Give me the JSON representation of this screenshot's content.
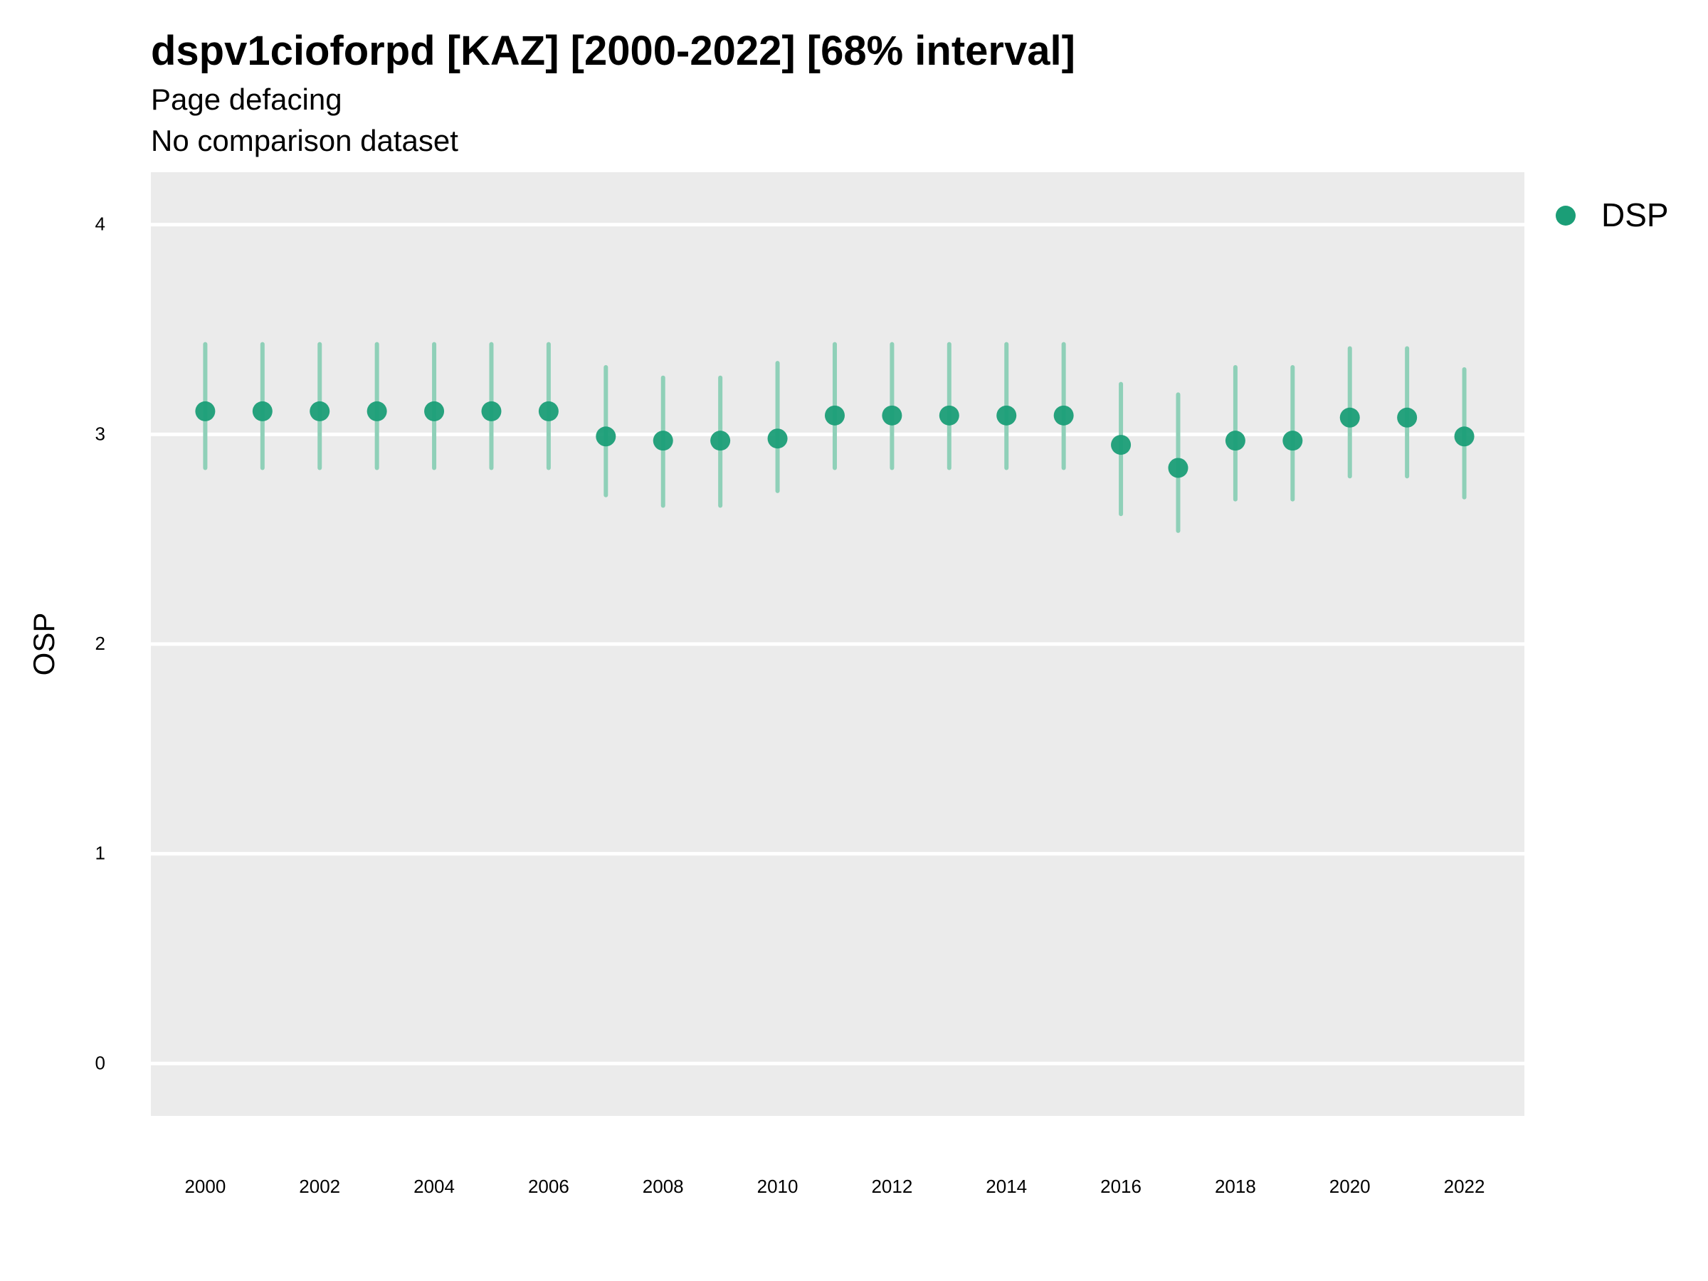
{
  "chart_data": {
    "type": "scatter",
    "title": "dspv1cioforpd [KAZ] [2000-2022] [68% interval]",
    "subtitle": [
      "Page defacing",
      "No comparison dataset"
    ],
    "xlabel": "",
    "ylabel": "OSP",
    "ylim": [
      -0.25,
      4.25
    ],
    "xlim": [
      1999.05,
      2023.05
    ],
    "y_ticks": [
      0,
      1,
      2,
      3,
      4
    ],
    "x_ticks": [
      2000,
      2002,
      2004,
      2006,
      2008,
      2010,
      2012,
      2014,
      2016,
      2018,
      2020,
      2022
    ],
    "grid": true,
    "legend_position": "right",
    "colors": {
      "panel": "#ebebeb",
      "gridline": "#ffffff",
      "point": "#1b9e77",
      "interval": "#8fd0b8"
    },
    "series": [
      {
        "name": "DSP",
        "x": [
          2000,
          2001,
          2002,
          2003,
          2004,
          2005,
          2006,
          2007,
          2008,
          2009,
          2010,
          2011,
          2012,
          2013,
          2014,
          2015,
          2016,
          2017,
          2018,
          2019,
          2020,
          2021,
          2022
        ],
        "y": [
          3.11,
          3.11,
          3.11,
          3.11,
          3.11,
          3.11,
          3.11,
          2.99,
          2.97,
          2.97,
          2.98,
          3.09,
          3.09,
          3.09,
          3.09,
          3.09,
          2.95,
          2.84,
          2.97,
          2.97,
          3.08,
          3.08,
          2.99
        ],
        "lower": [
          2.84,
          2.84,
          2.84,
          2.84,
          2.84,
          2.84,
          2.84,
          2.71,
          2.66,
          2.66,
          2.73,
          2.84,
          2.84,
          2.84,
          2.84,
          2.84,
          2.62,
          2.54,
          2.69,
          2.69,
          2.8,
          2.8,
          2.7
        ],
        "upper": [
          3.43,
          3.43,
          3.43,
          3.43,
          3.43,
          3.43,
          3.43,
          3.32,
          3.27,
          3.27,
          3.34,
          3.43,
          3.43,
          3.43,
          3.43,
          3.43,
          3.24,
          3.19,
          3.32,
          3.32,
          3.41,
          3.41,
          3.31
        ]
      }
    ]
  }
}
